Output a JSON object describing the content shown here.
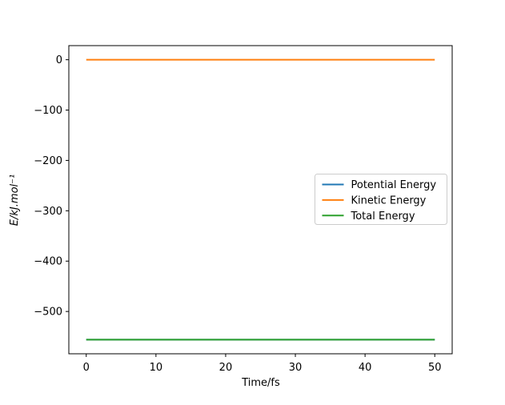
{
  "figure": {
    "background": "#ffffff",
    "title": ""
  },
  "chart_data": {
    "type": "line",
    "title": "",
    "xlabel": "Time/fs",
    "ylabel": "E/kJ.mol⁻¹",
    "xlim": [
      -2.5,
      52.5
    ],
    "ylim": [
      -584,
      28
    ],
    "xticks": [
      0,
      10,
      20,
      30,
      40,
      50
    ],
    "xticklabels": [
      "0",
      "10",
      "20",
      "30",
      "40",
      "50"
    ],
    "yticks": [
      0,
      -100,
      -200,
      -300,
      -400,
      -500
    ],
    "yticklabels": [
      "0",
      "−100",
      "−200",
      "−300",
      "−400",
      "−500"
    ],
    "grid": false,
    "x": [
      0,
      50
    ],
    "series": [
      {
        "name": "Potential Energy",
        "color": "#1f77b4",
        "values": [
          -556,
          -556
        ]
      },
      {
        "name": "Kinetic Energy",
        "color": "#ff7f0e",
        "values": [
          0,
          0
        ]
      },
      {
        "name": "Total Energy",
        "color": "#2ca02c",
        "values": [
          -556,
          -556
        ]
      }
    ],
    "legend": {
      "position": "center-right",
      "labels": [
        "Potential Energy",
        "Kinetic Energy",
        "Total Energy"
      ],
      "edge_color": "#cccccc",
      "face_color": "#ffffff"
    },
    "axis_color": "#000000"
  }
}
